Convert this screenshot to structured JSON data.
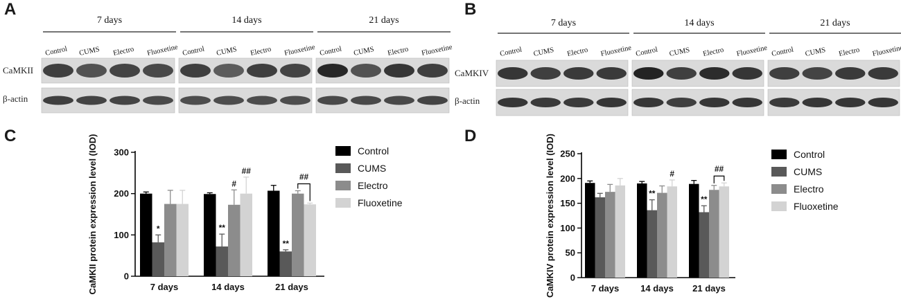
{
  "panels": {
    "A": {
      "letter": "A",
      "groups": [
        "7 days",
        "14 days",
        "21 days"
      ],
      "lanes": [
        "Control",
        "CUMS",
        "Electro",
        "Fluoxetine"
      ],
      "rows": [
        "CaMKII",
        "β-actin"
      ]
    },
    "B": {
      "letter": "B",
      "groups": [
        "7 days",
        "14 days",
        "21 days"
      ],
      "lanes": [
        "Control",
        "CUMS",
        "Electro",
        "Fluoxetine"
      ],
      "rows": [
        "CaMKIV",
        "β-actin"
      ]
    },
    "C": {
      "letter": "C"
    },
    "D": {
      "letter": "D"
    }
  },
  "chart_data": [
    {
      "type": "bar",
      "ylabel": "CaMKII protein expression level (IOD)",
      "ylim": [
        0,
        300
      ],
      "yticks": [
        0,
        100,
        200,
        300
      ],
      "categories": [
        "7 days",
        "14 days",
        "21 days"
      ],
      "legend_position": "right",
      "series": [
        {
          "name": "Control",
          "color": "#000000",
          "values": [
            200,
            199,
            207
          ],
          "errors": [
            4,
            3,
            13
          ]
        },
        {
          "name": "CUMS",
          "color": "#595959",
          "values": [
            82,
            72,
            60
          ],
          "errors": [
            18,
            30,
            4
          ]
        },
        {
          "name": "Electro",
          "color": "#8c8c8c",
          "values": [
            175,
            173,
            200
          ],
          "errors": [
            33,
            36,
            7
          ]
        },
        {
          "name": "Fluoxetine",
          "color": "#d3d3d3",
          "values": [
            175,
            200,
            174
          ],
          "errors": [
            33,
            40,
            3
          ]
        }
      ],
      "annotations": [
        {
          "text": "*",
          "category": 0,
          "series": 1
        },
        {
          "text": "**",
          "category": 1,
          "series": 1
        },
        {
          "text": "#",
          "category": 1,
          "series": 2
        },
        {
          "text": "##",
          "category": 1,
          "series": 3
        },
        {
          "text": "**",
          "category": 2,
          "series": 1
        },
        {
          "text": "##",
          "category": 2,
          "bracket": [
            2,
            3
          ]
        }
      ]
    },
    {
      "type": "bar",
      "ylabel": "CaMKIV  protein expression level (IOD)",
      "ylim": [
        0,
        250
      ],
      "yticks": [
        0,
        50,
        100,
        150,
        200,
        250
      ],
      "categories": [
        "7 days",
        "14 days",
        "21 days"
      ],
      "legend_position": "right",
      "series": [
        {
          "name": "Control",
          "color": "#000000",
          "values": [
            191,
            190,
            189
          ],
          "errors": [
            4,
            4,
            7
          ]
        },
        {
          "name": "CUMS",
          "color": "#595959",
          "values": [
            162,
            136,
            132
          ],
          "errors": [
            8,
            21,
            13
          ]
        },
        {
          "name": "Electro",
          "color": "#8c8c8c",
          "values": [
            173,
            171,
            177
          ],
          "errors": [
            15,
            14,
            9
          ]
        },
        {
          "name": "Fluoxetine",
          "color": "#d3d3d3",
          "values": [
            186,
            184,
            184
          ],
          "errors": [
            14,
            13,
            7
          ]
        }
      ],
      "annotations": [
        {
          "text": "**",
          "category": 1,
          "series": 1
        },
        {
          "text": "#",
          "category": 1,
          "series": 3
        },
        {
          "text": "**",
          "category": 2,
          "series": 1
        },
        {
          "text": "##",
          "category": 2,
          "bracket": [
            2,
            3
          ]
        }
      ]
    }
  ]
}
